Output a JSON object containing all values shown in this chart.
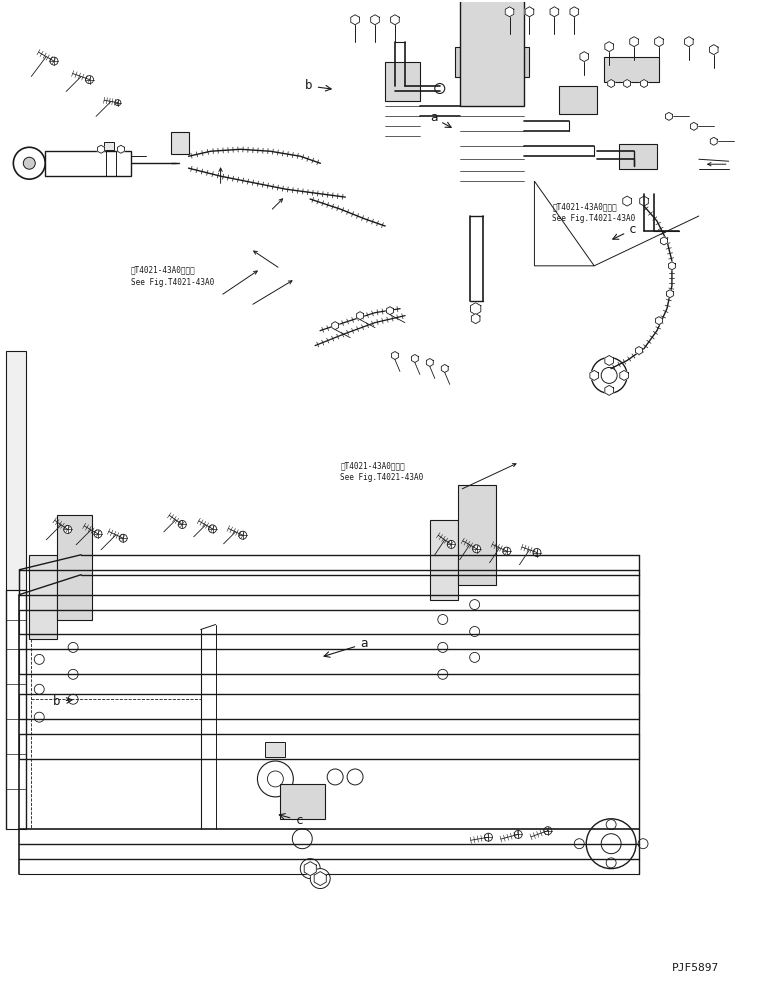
{
  "figure_code": "PJF5897",
  "background_color": "#ffffff",
  "line_color": "#1a1a1a",
  "text_color": "#1a1a1a",
  "figsize": [
    7.57,
    9.85
  ],
  "dpi": 100,
  "ref_text_1": "第T4021-43A0図参照",
  "ref_text_2": "See Fig.T4021-43A0",
  "label_a": "a",
  "label_b": "b",
  "label_c": "c"
}
